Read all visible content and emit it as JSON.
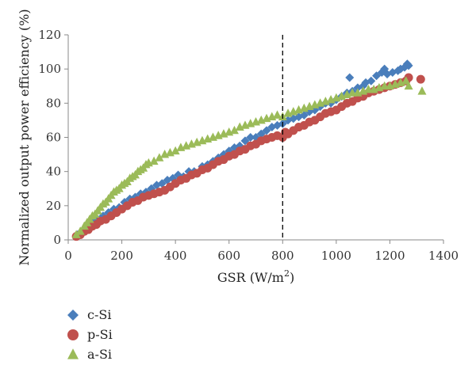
{
  "chart_data": {
    "type": "scatter",
    "title": "",
    "xlabel": "GSR (W/m",
    "xlabel_sup": "2",
    "xlabel_close": ")",
    "ylabel": "Normalized output power efficiency (%)",
    "xlim": [
      0,
      1400
    ],
    "ylim": [
      0,
      120
    ],
    "xticks": [
      0,
      200,
      400,
      600,
      800,
      1000,
      1200,
      1400
    ],
    "yticks": [
      0,
      20,
      40,
      60,
      80,
      100,
      120
    ],
    "grid": false,
    "legend_position": "bottom-left, below the plot",
    "reference_line": {
      "x": 800,
      "style": "dashed"
    },
    "series": [
      {
        "name": "c-Si",
        "marker": "diamond",
        "color": "#4A7EBB",
        "points": [
          [
            35,
            3
          ],
          [
            50,
            5
          ],
          [
            70,
            7
          ],
          [
            90,
            10
          ],
          [
            110,
            12
          ],
          [
            130,
            14
          ],
          [
            150,
            16
          ],
          [
            170,
            18
          ],
          [
            190,
            19
          ],
          [
            210,
            22
          ],
          [
            230,
            24
          ],
          [
            250,
            25
          ],
          [
            270,
            27
          ],
          [
            290,
            28
          ],
          [
            310,
            30
          ],
          [
            330,
            32
          ],
          [
            350,
            33
          ],
          [
            370,
            35
          ],
          [
            390,
            36
          ],
          [
            410,
            38
          ],
          [
            430,
            37
          ],
          [
            450,
            40
          ],
          [
            470,
            40
          ],
          [
            500,
            43
          ],
          [
            520,
            44
          ],
          [
            540,
            46
          ],
          [
            560,
            48
          ],
          [
            580,
            50
          ],
          [
            600,
            52
          ],
          [
            620,
            54
          ],
          [
            640,
            55
          ],
          [
            660,
            58
          ],
          [
            680,
            60
          ],
          [
            700,
            60
          ],
          [
            720,
            62
          ],
          [
            740,
            64
          ],
          [
            760,
            66
          ],
          [
            780,
            67
          ],
          [
            800,
            68
          ],
          [
            820,
            70
          ],
          [
            840,
            71
          ],
          [
            860,
            72
          ],
          [
            880,
            73
          ],
          [
            900,
            75
          ],
          [
            920,
            76
          ],
          [
            940,
            78
          ],
          [
            960,
            80
          ],
          [
            980,
            80
          ],
          [
            1000,
            82
          ],
          [
            1020,
            84
          ],
          [
            1040,
            86
          ],
          [
            1050,
            95
          ],
          [
            1060,
            87
          ],
          [
            1080,
            89
          ],
          [
            1100,
            90
          ],
          [
            1110,
            92
          ],
          [
            1130,
            93
          ],
          [
            1150,
            96
          ],
          [
            1170,
            98
          ],
          [
            1180,
            100
          ],
          [
            1190,
            97
          ],
          [
            1210,
            98
          ],
          [
            1230,
            99
          ],
          [
            1240,
            100
          ],
          [
            1255,
            101
          ],
          [
            1265,
            103
          ],
          [
            1270,
            102
          ]
        ]
      },
      {
        "name": "p-Si",
        "marker": "circle",
        "color": "#C0504D",
        "points": [
          [
            30,
            2
          ],
          [
            45,
            3
          ],
          [
            60,
            5
          ],
          [
            75,
            6
          ],
          [
            90,
            8
          ],
          [
            105,
            9
          ],
          [
            120,
            11
          ],
          [
            140,
            12
          ],
          [
            160,
            14
          ],
          [
            180,
            16
          ],
          [
            200,
            18
          ],
          [
            220,
            20
          ],
          [
            240,
            22
          ],
          [
            260,
            23
          ],
          [
            280,
            25
          ],
          [
            300,
            26
          ],
          [
            320,
            27
          ],
          [
            340,
            28
          ],
          [
            360,
            29
          ],
          [
            380,
            31
          ],
          [
            400,
            33
          ],
          [
            420,
            35
          ],
          [
            440,
            36
          ],
          [
            460,
            38
          ],
          [
            480,
            39
          ],
          [
            500,
            41
          ],
          [
            520,
            42
          ],
          [
            540,
            44
          ],
          [
            560,
            46
          ],
          [
            580,
            47
          ],
          [
            600,
            49
          ],
          [
            620,
            50
          ],
          [
            640,
            52
          ],
          [
            660,
            53
          ],
          [
            680,
            55
          ],
          [
            700,
            56
          ],
          [
            720,
            58
          ],
          [
            740,
            59
          ],
          [
            760,
            60
          ],
          [
            780,
            61
          ],
          [
            800,
            60
          ],
          [
            810,
            63
          ],
          [
            820,
            62
          ],
          [
            840,
            64
          ],
          [
            860,
            66
          ],
          [
            880,
            67
          ],
          [
            900,
            69
          ],
          [
            920,
            70
          ],
          [
            940,
            72
          ],
          [
            960,
            74
          ],
          [
            980,
            75
          ],
          [
            1000,
            76
          ],
          [
            1020,
            78
          ],
          [
            1040,
            80
          ],
          [
            1060,
            81
          ],
          [
            1080,
            83
          ],
          [
            1100,
            84
          ],
          [
            1120,
            86
          ],
          [
            1140,
            87
          ],
          [
            1160,
            88
          ],
          [
            1180,
            89
          ],
          [
            1200,
            90
          ],
          [
            1220,
            91
          ],
          [
            1240,
            92
          ],
          [
            1260,
            93
          ],
          [
            1270,
            95
          ],
          [
            1315,
            94
          ]
        ]
      },
      {
        "name": "a-Si",
        "marker": "triangle",
        "color": "#9BBB59",
        "points": [
          [
            30,
            3
          ],
          [
            45,
            5
          ],
          [
            60,
            8
          ],
          [
            70,
            10
          ],
          [
            80,
            12
          ],
          [
            90,
            14
          ],
          [
            100,
            15
          ],
          [
            110,
            17
          ],
          [
            120,
            19
          ],
          [
            130,
            21
          ],
          [
            140,
            22
          ],
          [
            150,
            24
          ],
          [
            160,
            26
          ],
          [
            170,
            28
          ],
          [
            180,
            29
          ],
          [
            190,
            30
          ],
          [
            200,
            32
          ],
          [
            210,
            33
          ],
          [
            220,
            34
          ],
          [
            230,
            36
          ],
          [
            240,
            37
          ],
          [
            250,
            38
          ],
          [
            260,
            40
          ],
          [
            270,
            41
          ],
          [
            280,
            42
          ],
          [
            290,
            44
          ],
          [
            300,
            45
          ],
          [
            320,
            46
          ],
          [
            340,
            48
          ],
          [
            360,
            50
          ],
          [
            380,
            51
          ],
          [
            400,
            52
          ],
          [
            420,
            54
          ],
          [
            440,
            55
          ],
          [
            460,
            56
          ],
          [
            480,
            57
          ],
          [
            500,
            58
          ],
          [
            520,
            59
          ],
          [
            540,
            60
          ],
          [
            560,
            61
          ],
          [
            580,
            62
          ],
          [
            600,
            63
          ],
          [
            620,
            64
          ],
          [
            640,
            66
          ],
          [
            660,
            67
          ],
          [
            680,
            68
          ],
          [
            700,
            69
          ],
          [
            720,
            70
          ],
          [
            740,
            71
          ],
          [
            760,
            72
          ],
          [
            780,
            73
          ],
          [
            800,
            72
          ],
          [
            820,
            74
          ],
          [
            840,
            75
          ],
          [
            860,
            76
          ],
          [
            880,
            77
          ],
          [
            900,
            78
          ],
          [
            920,
            79
          ],
          [
            940,
            80
          ],
          [
            960,
            81
          ],
          [
            980,
            82
          ],
          [
            1000,
            83
          ],
          [
            1020,
            84
          ],
          [
            1040,
            85
          ],
          [
            1060,
            86
          ],
          [
            1080,
            86
          ],
          [
            1100,
            87
          ],
          [
            1120,
            88
          ],
          [
            1140,
            88
          ],
          [
            1160,
            89
          ],
          [
            1180,
            90
          ],
          [
            1200,
            90
          ],
          [
            1220,
            91
          ],
          [
            1240,
            92
          ],
          [
            1260,
            93
          ],
          [
            1270,
            90
          ],
          [
            1320,
            87
          ]
        ]
      }
    ]
  }
}
